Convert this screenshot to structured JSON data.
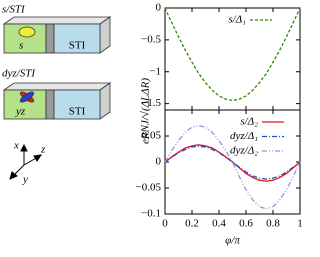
{
  "chart_data": [
    {
      "type": "line",
      "ylabel": "eRNJ/√(ΔLΔR)",
      "x": [
        0,
        0.05,
        0.1,
        0.15,
        0.2,
        0.25,
        0.3,
        0.35,
        0.4,
        0.45,
        0.5,
        0.55,
        0.6,
        0.65,
        0.7,
        0.75,
        0.8,
        0.85,
        0.9,
        0.95,
        1
      ],
      "series": [
        {
          "name": "s/Δ₁",
          "color": "#2e8b00",
          "linestyle": "dashed",
          "values": [
            0,
            -0.23,
            -0.45,
            -0.66,
            -0.85,
            -1.03,
            -1.17,
            -1.29,
            -1.38,
            -1.43,
            -1.45,
            -1.43,
            -1.38,
            -1.29,
            -1.17,
            -1.03,
            -0.85,
            -0.66,
            -0.45,
            -0.23,
            0
          ]
        }
      ],
      "xlim": [
        0,
        1
      ],
      "xticks": [
        0,
        0.2,
        0.4,
        0.6,
        0.8,
        1
      ],
      "ylim": [
        -1.6,
        0
      ],
      "yticks": [
        0,
        {
          "value": -0.5,
          "label": "−0.5"
        },
        {
          "value": -1,
          "label": "−1"
        },
        {
          "value": -1.5,
          "label": "−1.5"
        }
      ]
    },
    {
      "type": "line",
      "xlabel": "φ/π",
      "x": [
        0,
        0.05,
        0.1,
        0.15,
        0.2,
        0.25,
        0.3,
        0.35,
        0.4,
        0.45,
        0.5,
        0.55,
        0.6,
        0.65,
        0.7,
        0.75,
        0.8,
        0.85,
        0.9,
        0.95,
        1
      ],
      "series": [
        {
          "name": "s/Δ₂",
          "color": "#e8141e",
          "linestyle": "solid",
          "values": [
            0,
            0.01,
            0.019,
            0.027,
            0.031,
            0.033,
            0.031,
            0.027,
            0.019,
            0.01,
            0,
            -0.011,
            -0.022,
            -0.03,
            -0.035,
            -0.037,
            -0.035,
            -0.03,
            -0.022,
            -0.011,
            0
          ]
        },
        {
          "name": "dyz/Δ₁",
          "color": "#1f4fc8",
          "linestyle": "dashdot",
          "values": [
            0,
            0.009,
            0.018,
            0.024,
            0.029,
            0.03,
            0.029,
            0.024,
            0.018,
            0.009,
            0,
            -0.01,
            -0.019,
            -0.027,
            -0.031,
            -0.033,
            -0.031,
            -0.027,
            -0.019,
            -0.01,
            0
          ]
        },
        {
          "name": "dyz/Δ₂",
          "color": "#9a8fe0",
          "linestyle": "dashdotdot",
          "values": [
            0,
            0.022,
            0.041,
            0.057,
            0.067,
            0.07,
            0.067,
            0.057,
            0.041,
            0.022,
            0,
            -0.028,
            -0.053,
            -0.073,
            -0.086,
            -0.09,
            -0.086,
            -0.073,
            -0.053,
            -0.028,
            0
          ]
        }
      ],
      "xlim": [
        0,
        1
      ],
      "xticks": [
        0,
        0.2,
        0.4,
        0.6,
        0.8,
        1
      ],
      "ylim": [
        -0.1,
        0.1
      ],
      "yticks": [
        0.05,
        0,
        {
          "value": -0.05,
          "label": "−0.05"
        },
        {
          "value": -0.1,
          "label": "−0.1"
        }
      ]
    }
  ],
  "schematic": {
    "top": {
      "title": "s/STI",
      "left": "s",
      "right": "STI"
    },
    "bottom": {
      "title": "dyz/STI",
      "left": "yz",
      "right": "STI"
    },
    "axes": {
      "x": "x",
      "z": "z",
      "y": "y"
    }
  }
}
